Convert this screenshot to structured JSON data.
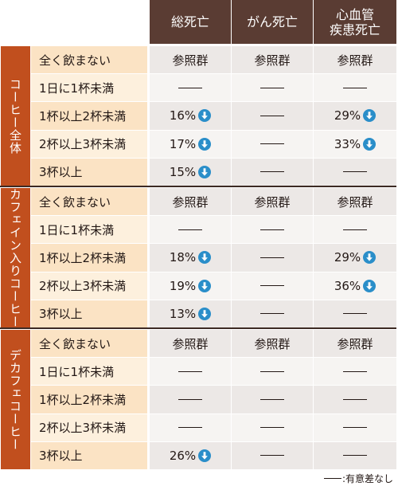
{
  "columns": [
    "総死亡",
    "がん死亡",
    "心血管\n疾患死亡"
  ],
  "groups": [
    {
      "name": "コーヒー全体",
      "rows": [
        {
          "label": "全く飲まない",
          "cells": [
            "参照群",
            "参照群",
            "参照群"
          ]
        },
        {
          "label": "1日に1杯未満",
          "cells": [
            "—",
            "—",
            "—"
          ]
        },
        {
          "label": "1杯以上2杯未満",
          "cells": [
            "16%↓",
            "—",
            "29%↓"
          ]
        },
        {
          "label": "2杯以上3杯未満",
          "cells": [
            "17%↓",
            "—",
            "33%↓"
          ]
        },
        {
          "label": "3杯以上",
          "cells": [
            "15%↓",
            "—",
            "—"
          ]
        }
      ]
    },
    {
      "name": "カフェイン入りコーヒー",
      "rows": [
        {
          "label": "全く飲まない",
          "cells": [
            "参照群",
            "参照群",
            "参照群"
          ]
        },
        {
          "label": "1日に1杯未満",
          "cells": [
            "—",
            "—",
            "—"
          ]
        },
        {
          "label": "1杯以上2杯未満",
          "cells": [
            "18%↓",
            "—",
            "29%↓"
          ]
        },
        {
          "label": "2杯以上3杯未満",
          "cells": [
            "19%↓",
            "—",
            "36%↓"
          ]
        },
        {
          "label": "3杯以上",
          "cells": [
            "13%↓",
            "—",
            "—"
          ]
        }
      ]
    },
    {
      "name": "デカフェコーヒー",
      "rows": [
        {
          "label": "全く飲まない",
          "cells": [
            "参照群",
            "参照群",
            "参照群"
          ]
        },
        {
          "label": "1日に1杯未満",
          "cells": [
            "—",
            "—",
            "—"
          ]
        },
        {
          "label": "1杯以上2杯未満",
          "cells": [
            "—",
            "—",
            "—"
          ]
        },
        {
          "label": "2杯以上3杯未満",
          "cells": [
            "—",
            "—",
            "—"
          ]
        },
        {
          "label": "3杯以上",
          "cells": [
            "26%↓",
            "—",
            "—"
          ]
        }
      ]
    }
  ],
  "footnote": ":有意差なし",
  "colors": {
    "header_bg": "#5a3c33",
    "group_bg": "#c14f1e",
    "label_bg_a": "#fbe3c4",
    "label_bg_b": "#fdf0dd",
    "data_bg_a": "#ece8e6",
    "data_bg_b": "#f6f4f2",
    "arrow": "#2a8ec9",
    "text": "#231815"
  },
  "icons": {
    "decrease": "blue-down-arrow-icon",
    "no_difference": "dash"
  }
}
